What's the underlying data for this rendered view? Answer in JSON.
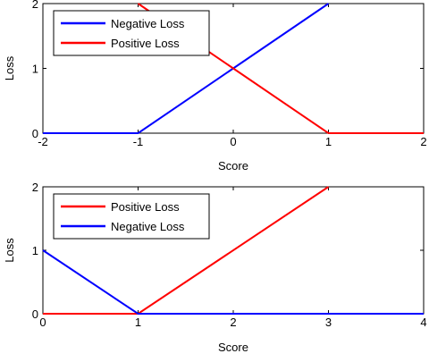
{
  "chart_data": [
    {
      "type": "line",
      "xlabel": "Score",
      "ylabel": "Loss",
      "xlim": [
        -2,
        2
      ],
      "ylim": [
        0,
        2
      ],
      "xticks": [
        -2,
        -1,
        0,
        1,
        2
      ],
      "yticks": [
        0,
        1,
        2
      ],
      "xtick_labels": [
        "-2",
        "-1",
        "0",
        "1",
        "2"
      ],
      "ytick_labels": [
        "0",
        "1",
        "2"
      ],
      "grid": false,
      "legend_position": "top-left",
      "series": [
        {
          "name": "Negative Loss",
          "color": "#0000ff",
          "x": [
            -2,
            -1,
            1
          ],
          "y": [
            0,
            0,
            2
          ]
        },
        {
          "name": "Positive Loss",
          "color": "#ff0000",
          "x": [
            -1,
            1,
            2
          ],
          "y": [
            2,
            0,
            0
          ]
        }
      ]
    },
    {
      "type": "line",
      "xlabel": "Score",
      "ylabel": "Loss",
      "xlim": [
        0,
        4
      ],
      "ylim": [
        0,
        2
      ],
      "xticks": [
        0,
        1,
        2,
        3,
        4
      ],
      "yticks": [
        0,
        1,
        2
      ],
      "xtick_labels": [
        "0",
        "1",
        "2",
        "3",
        "4"
      ],
      "ytick_labels": [
        "0",
        "1",
        "2"
      ],
      "grid": false,
      "legend_position": "top-left",
      "series": [
        {
          "name": "Positive Loss",
          "color": "#ff0000",
          "x": [
            0,
            1,
            3
          ],
          "y": [
            0,
            0,
            2
          ]
        },
        {
          "name": "Negative Loss",
          "color": "#0000ff",
          "x": [
            0,
            1,
            4
          ],
          "y": [
            1,
            0,
            0
          ]
        }
      ]
    }
  ]
}
